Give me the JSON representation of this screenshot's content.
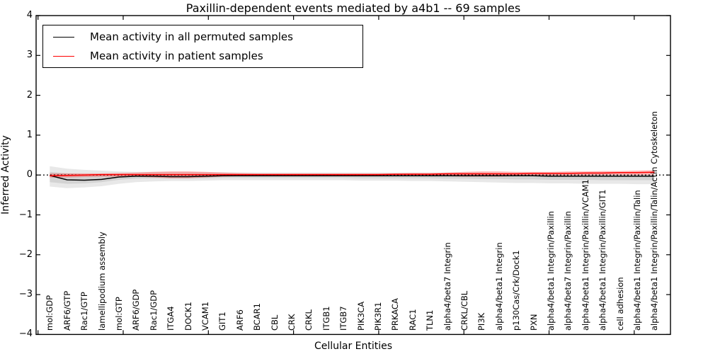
{
  "title": "Paxillin-dependent events mediated by a4b1 -- 69 samples",
  "legend": {
    "items": [
      {
        "label": "Mean activity in all permuted samples",
        "color": "#000000"
      },
      {
        "label": "Mean activity in patient samples",
        "color": "#ff0000"
      }
    ]
  },
  "axes": {
    "ylabel": "Inferred Activity",
    "xlabel": "Cellular Entities"
  },
  "chart_data": {
    "type": "line",
    "title": "Paxillin-dependent events mediated by a4b1 -- 69 samples",
    "xlabel": "Cellular Entities",
    "ylabel": "Inferred Activity",
    "ylim": [
      -4,
      4
    ],
    "grid": false,
    "legend_position": "upper left",
    "yticks": {
      "labels": [
        "4",
        "3",
        "2",
        "1",
        "0",
        "−1",
        "−2",
        "−3",
        "−4"
      ],
      "values": [
        4,
        3,
        2,
        1,
        0,
        -1,
        -2,
        -3,
        -4
      ]
    },
    "zero_reference_line": {
      "value": 0,
      "style": "dotted",
      "color": "#000000"
    },
    "categories": [
      "mol:GDP",
      "ARF6/GTP",
      "Rac1/GTP",
      "lamellipodium assembly",
      "mol:GTP",
      "ARF6/GDP",
      "Rac1/GDP",
      "ITGA4",
      "DOCK1",
      "VCAM1",
      "GIT1",
      "ARF6",
      "BCAR1",
      "CBL",
      "CRK",
      "CRKL",
      "ITGB1",
      "ITGB7",
      "PIK3CA",
      "PIK3R1",
      "PRKACA",
      "RAC1",
      "TLN1",
      "alpha4/beta7 Integrin",
      "CRKL/CBL",
      "PI3K",
      "alpha4/beta1 Integrin",
      "p130Cas/Crk/Dock1",
      "PXN",
      "alpha4/beta1 Integrin/Paxillin",
      "alpha4/beta7 Integrin/Paxillin",
      "alpha4/beta1 Integrin/Paxillin/VCAM1",
      "alpha4/beta1 Integrin/Paxillin/GIT1",
      "cell adhesion",
      "alpha4/beta1 Integrin/Paxillin/Talin",
      "alpha4/beta1 Integrin/Paxillin/Talin/Actin Cytoskeleton"
    ],
    "series": [
      {
        "name": "Mean activity in all permuted samples",
        "color": "#000000",
        "style": "solid",
        "values": [
          -0.01,
          -0.12,
          -0.13,
          -0.11,
          -0.05,
          -0.03,
          -0.03,
          -0.04,
          -0.04,
          -0.03,
          -0.02,
          -0.02,
          -0.02,
          -0.02,
          -0.02,
          -0.02,
          -0.02,
          -0.02,
          -0.02,
          -0.02,
          -0.02,
          -0.02,
          -0.02,
          -0.02,
          -0.02,
          -0.02,
          -0.02,
          -0.02,
          -0.02,
          -0.03,
          -0.03,
          -0.03,
          -0.03,
          -0.03,
          -0.03,
          -0.03
        ]
      },
      {
        "name": "Mean activity in patient samples",
        "color": "#ff0000",
        "style": "solid",
        "values": [
          -0.02,
          -0.01,
          0.0,
          0.01,
          0.01,
          0.01,
          0.01,
          0.01,
          0.01,
          0.01,
          0.01,
          0.01,
          0.01,
          0.01,
          0.01,
          0.01,
          0.01,
          0.01,
          0.01,
          0.01,
          0.02,
          0.02,
          0.02,
          0.03,
          0.03,
          0.03,
          0.03,
          0.03,
          0.04,
          0.04,
          0.04,
          0.05,
          0.05,
          0.06,
          0.06,
          0.07
        ]
      }
    ],
    "bands": [
      {
        "name": "permuted-samples-outer-band",
        "color": "rgba(0,0,0,0.09)",
        "hi": [
          0.22,
          0.16,
          0.13,
          0.11,
          0.09,
          0.08,
          0.08,
          0.08,
          0.08,
          0.07,
          0.07,
          0.06,
          0.06,
          0.06,
          0.06,
          0.06,
          0.06,
          0.06,
          0.06,
          0.06,
          0.06,
          0.06,
          0.06,
          0.06,
          0.06,
          0.06,
          0.05,
          0.05,
          0.05,
          0.05,
          0.04,
          0.04,
          0.04,
          0.03,
          0.03,
          0.02
        ],
        "lo": [
          -0.29,
          -0.33,
          -0.31,
          -0.28,
          -0.22,
          -0.18,
          -0.16,
          -0.15,
          -0.15,
          -0.14,
          -0.13,
          -0.13,
          -0.13,
          -0.13,
          -0.13,
          -0.13,
          -0.13,
          -0.13,
          -0.14,
          -0.14,
          -0.14,
          -0.15,
          -0.15,
          -0.16,
          -0.17,
          -0.18,
          -0.19,
          -0.2,
          -0.2,
          -0.21,
          -0.21,
          -0.22,
          -0.22,
          -0.22,
          -0.23,
          -0.23
        ]
      },
      {
        "name": "permuted-samples-inner-band",
        "color": "rgba(0,0,0,0.09)",
        "hi": [
          0.08,
          0.04,
          0.02,
          0.02,
          0.02,
          0.02,
          0.02,
          0.02,
          0.02,
          0.02,
          0.02,
          0.02,
          0.02,
          0.02,
          0.02,
          0.02,
          0.02,
          0.02,
          0.02,
          0.02,
          0.02,
          0.02,
          0.02,
          0.02,
          0.02,
          0.02,
          0.02,
          0.02,
          0.02,
          0.02,
          0.01,
          0.01,
          0.01,
          0.01,
          0.01,
          0.01
        ],
        "lo": [
          -0.18,
          -0.22,
          -0.21,
          -0.18,
          -0.12,
          -0.09,
          -0.08,
          -0.08,
          -0.08,
          -0.08,
          -0.07,
          -0.07,
          -0.07,
          -0.07,
          -0.07,
          -0.07,
          -0.07,
          -0.07,
          -0.08,
          -0.08,
          -0.08,
          -0.08,
          -0.08,
          -0.09,
          -0.09,
          -0.1,
          -0.1,
          -0.11,
          -0.11,
          -0.12,
          -0.12,
          -0.12,
          -0.13,
          -0.13,
          -0.13,
          -0.13
        ]
      },
      {
        "name": "patient-samples-band",
        "color": "rgba(255,0,0,0.28)",
        "hi": [
          0.04,
          0.04,
          0.04,
          0.04,
          0.05,
          0.06,
          0.08,
          0.09,
          0.09,
          0.08,
          0.06,
          0.05,
          0.04,
          0.04,
          0.04,
          0.04,
          0.04,
          0.04,
          0.04,
          0.04,
          0.04,
          0.05,
          0.05,
          0.06,
          0.08,
          0.09,
          0.09,
          0.08,
          0.08,
          0.08,
          0.09,
          0.09,
          0.1,
          0.1,
          0.11,
          0.12
        ],
        "lo": [
          -0.06,
          -0.06,
          -0.05,
          -0.04,
          -0.04,
          -0.04,
          -0.06,
          -0.08,
          -0.08,
          -0.06,
          -0.04,
          -0.03,
          -0.02,
          -0.02,
          -0.02,
          -0.02,
          -0.02,
          -0.02,
          -0.02,
          -0.02,
          -0.02,
          -0.02,
          -0.02,
          -0.03,
          -0.04,
          -0.04,
          -0.04,
          -0.03,
          -0.02,
          -0.02,
          -0.01,
          -0.01,
          0.0,
          0.0,
          0.0,
          0.01
        ]
      }
    ]
  }
}
